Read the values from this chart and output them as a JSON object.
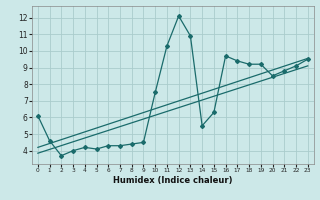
{
  "xlabel": "Humidex (Indice chaleur)",
  "xlim": [
    -0.5,
    23.5
  ],
  "ylim": [
    3.2,
    12.7
  ],
  "yticks": [
    4,
    5,
    6,
    7,
    8,
    9,
    10,
    11,
    12
  ],
  "xticks": [
    0,
    1,
    2,
    3,
    4,
    5,
    6,
    7,
    8,
    9,
    10,
    11,
    12,
    13,
    14,
    15,
    16,
    17,
    18,
    19,
    20,
    21,
    22,
    23
  ],
  "bg_color": "#cce8e8",
  "grid_color": "#aacccc",
  "line_color": "#1a6b6b",
  "series1_x": [
    0,
    1,
    2,
    3,
    4,
    5,
    6,
    7,
    8,
    9,
    10,
    11,
    12,
    13,
    14,
    15,
    16,
    17,
    18,
    19,
    20,
    21,
    22,
    23
  ],
  "series1_y": [
    6.1,
    4.6,
    3.7,
    4.0,
    4.2,
    4.1,
    4.3,
    4.3,
    4.4,
    4.5,
    7.5,
    10.3,
    12.1,
    10.9,
    5.5,
    6.3,
    9.7,
    9.4,
    9.2,
    9.2,
    8.5,
    8.8,
    9.1,
    9.5
  ],
  "series2_x": [
    0,
    23
  ],
  "series2_y": [
    4.2,
    9.55
  ],
  "series3_x": [
    0,
    23
  ],
  "series3_y": [
    3.85,
    9.1
  ]
}
